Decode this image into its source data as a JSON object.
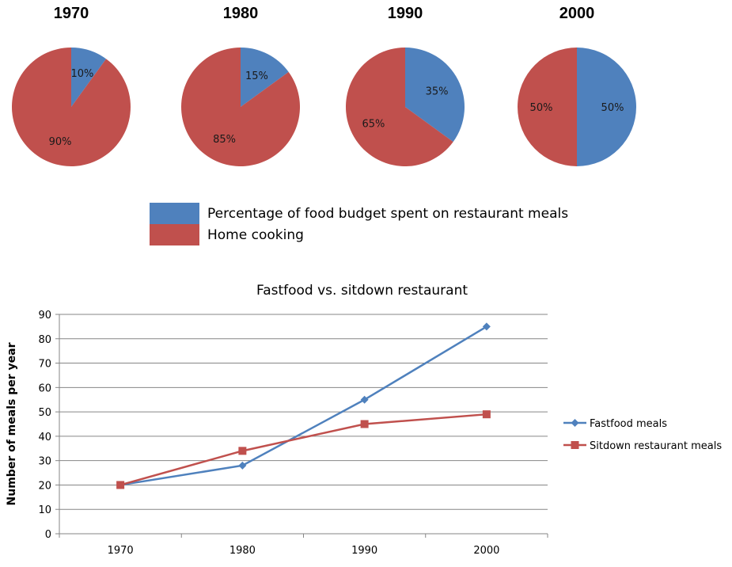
{
  "colors": {
    "restaurant": "#4F81BD",
    "home": "#C0504D",
    "grid": "#868686",
    "axis": "#868686"
  },
  "chart_data": [
    {
      "type": "pie",
      "categories": [
        "1970",
        "1980",
        "1990",
        "2000"
      ],
      "series": [
        {
          "name": "Percentage of food budget spent on restaurant meals",
          "color": "#4F81BD",
          "values": [
            10,
            15,
            35,
            50
          ]
        },
        {
          "name": "Home cooking",
          "color": "#C0504D",
          "values": [
            90,
            85,
            65,
            50
          ]
        }
      ],
      "data_labels": [
        {
          "restaurant": "10%",
          "home": "90%"
        },
        {
          "restaurant": "15%",
          "home": "85%"
        },
        {
          "restaurant": "35%",
          "home": "65%"
        },
        {
          "restaurant": "50%",
          "home": "50%"
        }
      ],
      "legend": "bottom"
    },
    {
      "type": "line",
      "title": "Fastfood vs. sitdown restaurant",
      "xlabel": "",
      "ylabel": "Number of meals per year",
      "x": [
        "1970",
        "1980",
        "1990",
        "2000"
      ],
      "ylim": [
        0,
        90
      ],
      "yticks": [
        0,
        10,
        20,
        30,
        40,
        50,
        60,
        70,
        80,
        90
      ],
      "grid": true,
      "legend": "right",
      "series": [
        {
          "name": "Fastfood meals",
          "color": "#4F81BD",
          "marker": "diamond",
          "values": [
            20,
            28,
            55,
            85
          ]
        },
        {
          "name": "Sitdown restaurant meals",
          "color": "#C0504D",
          "marker": "square",
          "values": [
            20,
            34,
            45,
            49
          ]
        }
      ]
    }
  ]
}
